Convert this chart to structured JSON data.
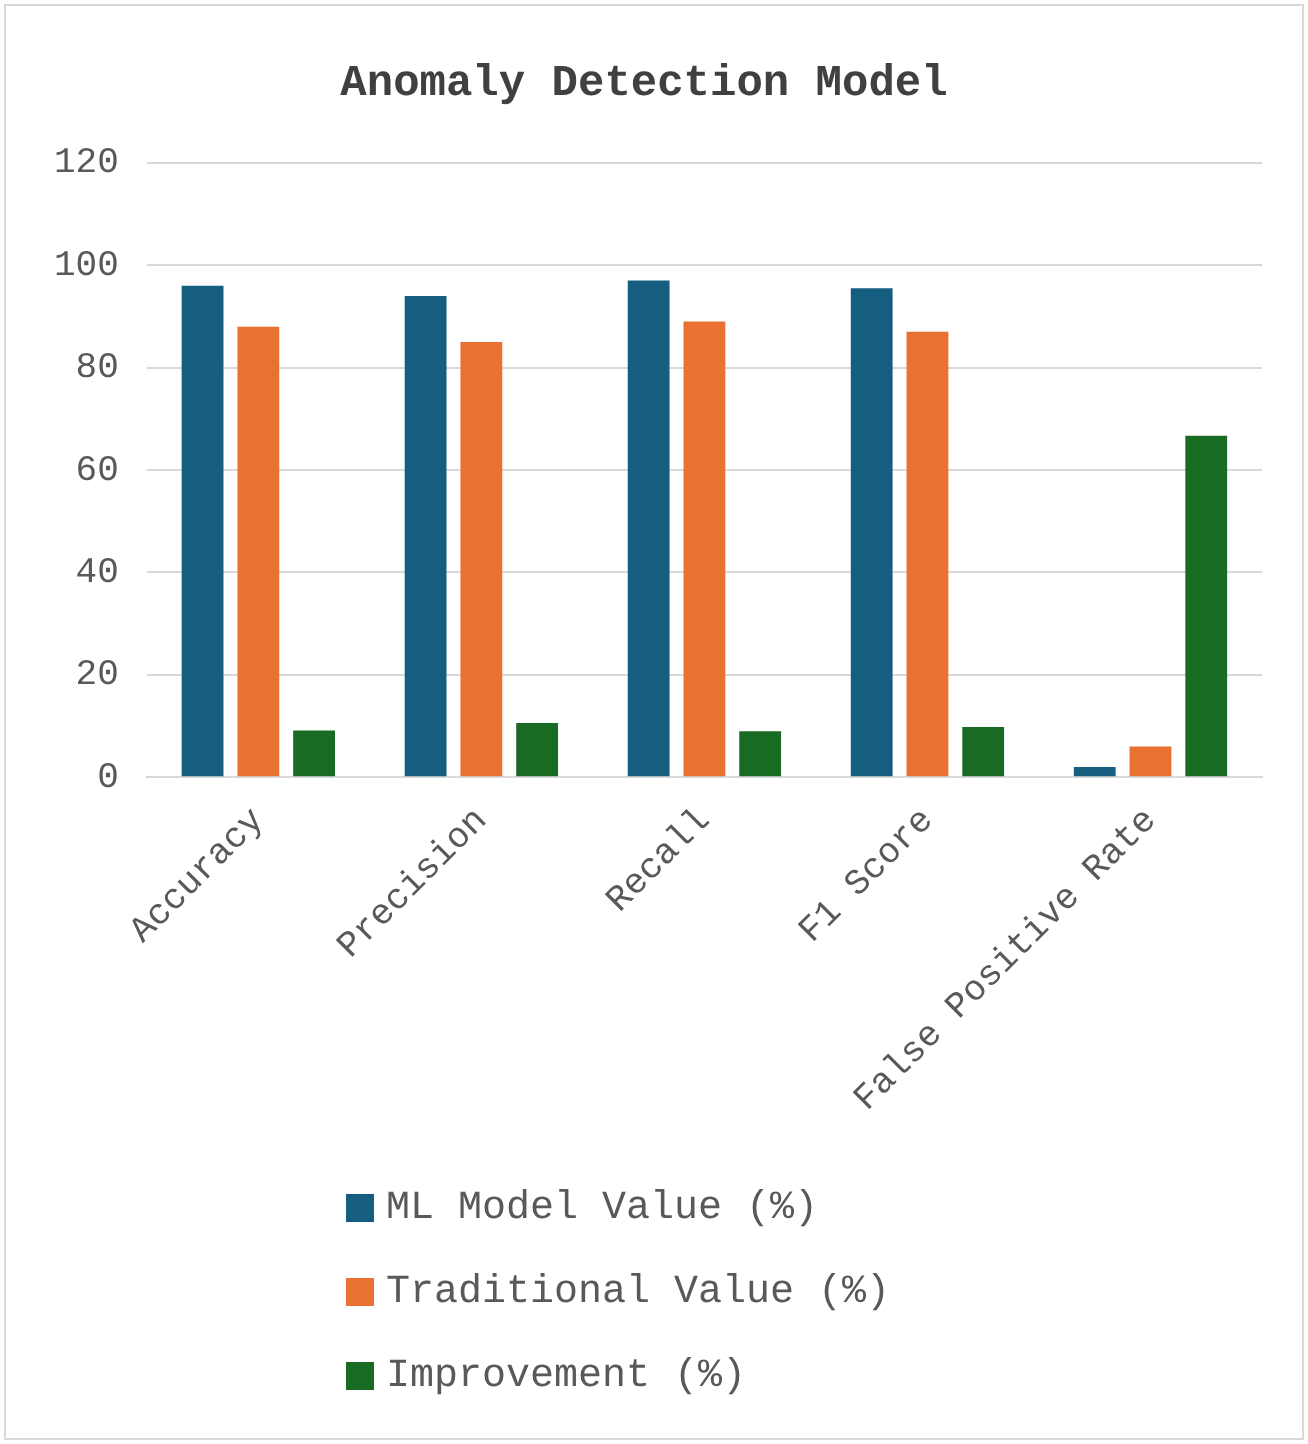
{
  "chart_data": {
    "type": "bar",
    "title": "Anomaly Detection Model",
    "categories": [
      "Accuracy",
      "Precision",
      "Recall",
      "F1 Score",
      "False Positive Rate"
    ],
    "series": [
      {
        "name": "ML Model Value (%)",
        "color": "#165e80",
        "values": [
          96,
          94,
          97,
          95.5,
          2
        ]
      },
      {
        "name": "Traditional Value (%)",
        "color": "#e97132",
        "values": [
          88,
          85,
          89,
          87,
          6
        ]
      },
      {
        "name": "Improvement (%)",
        "color": "#196b24",
        "values": [
          9.1,
          10.6,
          9,
          9.8,
          66.7
        ]
      }
    ],
    "ylim": [
      0,
      120
    ],
    "yticks": [
      0,
      20,
      40,
      60,
      80,
      100,
      120
    ],
    "grid": "y",
    "legend": "bottom"
  }
}
